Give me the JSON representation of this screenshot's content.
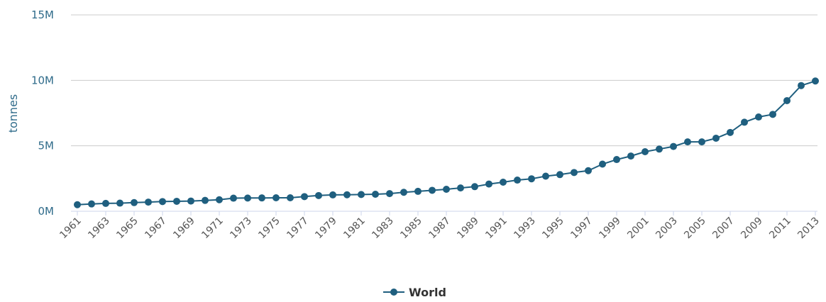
{
  "chart_data": {
    "type": "line",
    "title": "",
    "xlabel": "",
    "ylabel": "tonnes",
    "ylim": [
      0,
      15000000
    ],
    "yticks": [
      {
        "value": 0,
        "label": "0M"
      },
      {
        "value": 5000000,
        "label": "5M"
      },
      {
        "value": 10000000,
        "label": "10M"
      },
      {
        "value": 15000000,
        "label": "15M"
      }
    ],
    "x": [
      1961,
      1962,
      1963,
      1964,
      1965,
      1966,
      1967,
      1968,
      1969,
      1970,
      1971,
      1972,
      1973,
      1974,
      1975,
      1976,
      1977,
      1978,
      1979,
      1980,
      1981,
      1982,
      1983,
      1984,
      1985,
      1986,
      1987,
      1988,
      1989,
      1990,
      1991,
      1992,
      1993,
      1994,
      1995,
      1996,
      1997,
      1998,
      1999,
      2000,
      2001,
      2002,
      2003,
      2004,
      2005,
      2006,
      2007,
      2008,
      2009,
      2010,
      2011,
      2012,
      2013
    ],
    "xtick_labels": [
      "1961",
      "1963",
      "1965",
      "1967",
      "1969",
      "1971",
      "1973",
      "1975",
      "1977",
      "1979",
      "1981",
      "1983",
      "1985",
      "1987",
      "1989",
      "1991",
      "1993",
      "1995",
      "1997",
      "1999",
      "2001",
      "2003",
      "2005",
      "2007",
      "2009",
      "2011",
      "2013"
    ],
    "grid": true,
    "legend": "bottom-center",
    "series": [
      {
        "name": "World",
        "color": "#1f5f7f",
        "values": [
          500000,
          560000,
          600000,
          620000,
          660000,
          700000,
          740000,
          760000,
          780000,
          830000,
          880000,
          1000000,
          1010000,
          1020000,
          1030000,
          1030000,
          1120000,
          1200000,
          1250000,
          1260000,
          1280000,
          1300000,
          1350000,
          1450000,
          1520000,
          1600000,
          1680000,
          1780000,
          1880000,
          2080000,
          2220000,
          2380000,
          2480000,
          2680000,
          2800000,
          2960000,
          3100000,
          3600000,
          3950000,
          4220000,
          4550000,
          4750000,
          4950000,
          5300000,
          5300000,
          5580000,
          6020000,
          6800000,
          7200000,
          7400000,
          8450000,
          9600000,
          9950000
        ]
      }
    ]
  }
}
